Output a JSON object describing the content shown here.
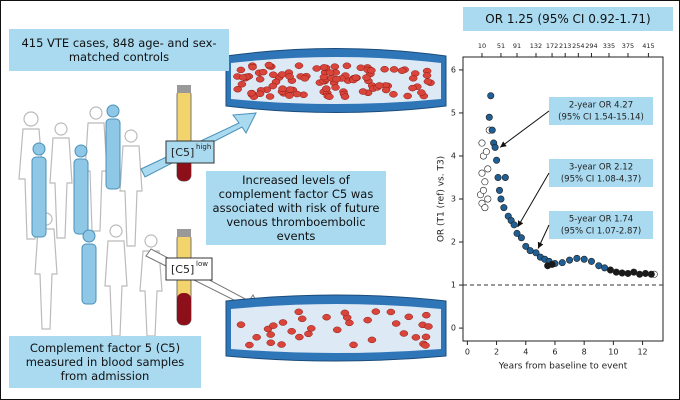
{
  "boxes": {
    "cohort": "415 VTE cases, 848 age- and sex-matched controls",
    "finding": "Increased levels of complement factor C5 was associated with risk of future venous thromboembolic events",
    "measure": "Complement factor 5 (C5) measured in blood samples from admission"
  },
  "labels": {
    "high_base": "[C5]",
    "high_sup": "high",
    "low_base": "[C5]",
    "low_sup": "low"
  },
  "chart_data": {
    "type": "scatter",
    "title": "OR 1.25 (95% CI 0.92-1.71)",
    "x_label": "Years from baseline to event",
    "y_label": "OR (T1 (ref) vs. T3)",
    "xlim": [
      -0.3,
      13.4
    ],
    "ylim": [
      -0.3,
      6.3
    ],
    "xticks": [
      0,
      2,
      4,
      6,
      8,
      10,
      12
    ],
    "yticks": [
      0,
      1,
      2,
      3,
      4,
      5,
      6
    ],
    "top_ticks": [
      {
        "value": 1.0,
        "label": "10"
      },
      {
        "value": 2.3,
        "label": "51"
      },
      {
        "value": 3.4,
        "label": "91"
      },
      {
        "value": 4.7,
        "label": "132"
      },
      {
        "value": 5.8,
        "label": "172"
      },
      {
        "value": 6.7,
        "label": "213"
      },
      {
        "value": 7.6,
        "label": "254"
      },
      {
        "value": 8.5,
        "label": "294"
      },
      {
        "value": 9.7,
        "label": "335"
      },
      {
        "value": 11.0,
        "label": "375"
      },
      {
        "value": 12.4,
        "label": "415"
      }
    ],
    "ref_line": 1,
    "series": [
      {
        "color": "#ffffff",
        "x": [
          0.9,
          1.0,
          1.1,
          1.2,
          1.0,
          1.3,
          1.4,
          1.1,
          1.5,
          1.2,
          1.4,
          1.0,
          12.8
        ],
        "values": [
          3.1,
          3.6,
          4.0,
          3.4,
          2.9,
          4.1,
          3.7,
          3.2,
          4.6,
          2.8,
          3.0,
          4.3,
          1.25
        ]
      },
      {
        "color": "#1f5f94",
        "x": [
          1.6,
          1.5,
          1.7,
          1.8,
          1.9,
          2.0,
          2.1,
          2.2,
          2.3,
          2.5,
          2.6,
          2.8,
          3.0,
          3.2,
          3.4,
          3.7,
          4.0,
          4.3,
          4.7,
          5.0,
          5.3,
          5.6,
          6.0,
          6.5,
          7.0,
          7.5,
          8.0,
          8.5,
          9.0,
          9.4
        ],
        "values": [
          5.4,
          4.9,
          4.6,
          4.3,
          4.2,
          3.9,
          3.5,
          3.2,
          3.0,
          2.8,
          3.5,
          2.6,
          2.5,
          2.4,
          2.2,
          2.1,
          1.9,
          1.8,
          1.75,
          1.65,
          1.6,
          1.55,
          1.5,
          1.52,
          1.58,
          1.62,
          1.6,
          1.55,
          1.45,
          1.4
        ]
      },
      {
        "color": "#1a1a1a",
        "x": [
          5.5,
          5.8,
          9.8,
          10.2,
          10.6,
          11.0,
          11.4,
          11.8,
          12.2,
          12.6
        ],
        "values": [
          1.45,
          1.48,
          1.35,
          1.3,
          1.28,
          1.27,
          1.3,
          1.25,
          1.27,
          1.25
        ]
      }
    ],
    "annotations": [
      {
        "lines": [
          "2-year OR 4.27",
          "(95% CI 1.54-15.14)"
        ],
        "xy": [
          1.9,
          4.2
        ]
      },
      {
        "lines": [
          "3-year OR 2.12",
          "(95% CI 1.08-4.37)"
        ],
        "xy": [
          3.1,
          2.35
        ]
      },
      {
        "lines": [
          "5-year OR 1.74",
          "(95% CI 1.07-2.87)"
        ],
        "xy": [
          4.5,
          1.85
        ]
      }
    ]
  }
}
